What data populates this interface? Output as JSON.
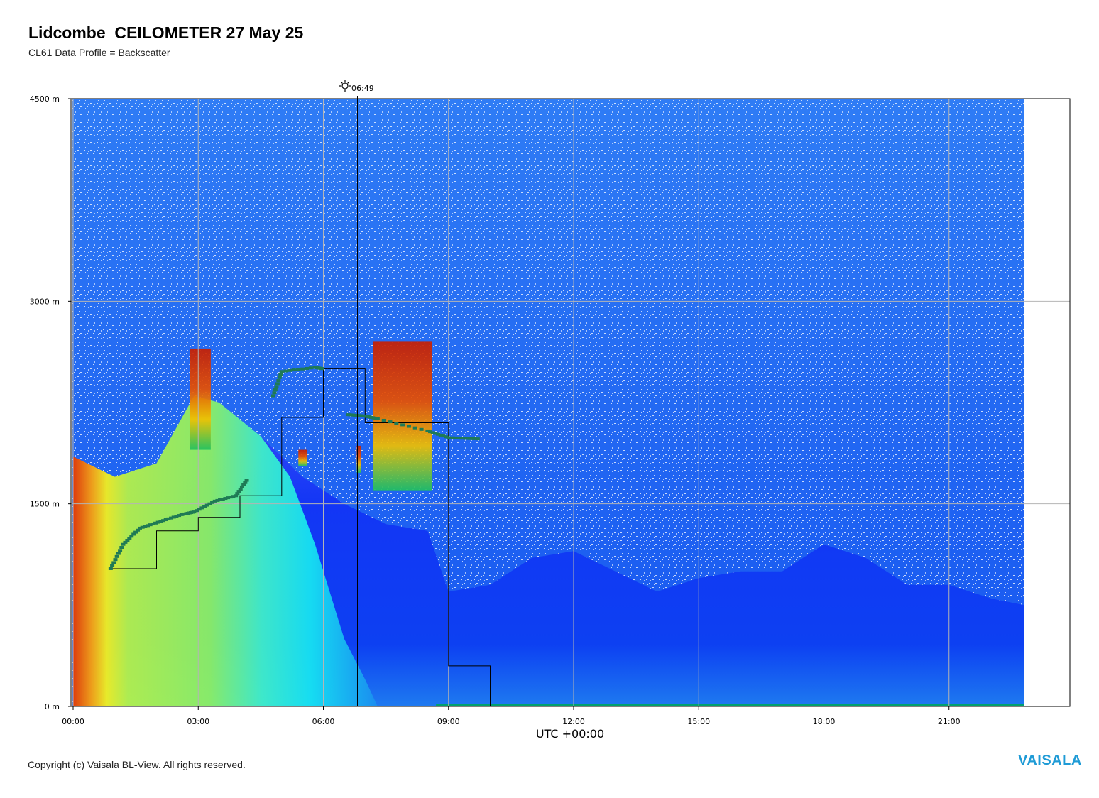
{
  "header": {
    "title": "Lidcombe_CEILOMETER 27 May 25",
    "subtitle": "CL61 Data Profile = Backscatter"
  },
  "footer": {
    "copyright": "Copyright (c) Vaisala BL-View. All rights reserved.",
    "brand": "VAISALA"
  },
  "chart_data": {
    "type": "heatmap",
    "title": "Lidcombe_CEILOMETER 27 May 25",
    "subtitle": "CL61 Data Profile = Backscatter",
    "xlabel": "UTC +00:00",
    "ylabel": "",
    "x_unit": "hours UTC",
    "y_unit": "m",
    "xlim": [
      0,
      24
    ],
    "ylim": [
      0,
      4500
    ],
    "x_ticks": [
      "00:00",
      "03:00",
      "06:00",
      "09:00",
      "12:00",
      "15:00",
      "18:00",
      "21:00"
    ],
    "x_tick_values": [
      0,
      3,
      6,
      9,
      12,
      15,
      18,
      21
    ],
    "y_ticks": [
      "0 m",
      "1500 m",
      "3000 m",
      "4500 m"
    ],
    "y_tick_values": [
      0,
      1500,
      3000,
      4500
    ],
    "data_end_hour": 22.8,
    "grid": true,
    "sunrise": {
      "label": "06:49",
      "hour": 6.817,
      "icon": "sun-icon"
    },
    "colors": {
      "noise": "#0a5cf0",
      "boundary_layer": "#1a3cf8",
      "high_backscatter": "#c81e00",
      "aerosol_green": "#7cf06a",
      "aerosol_cyan": "#1ae6f0",
      "layer_marker": "#1f7a55",
      "surface": "#00a070"
    },
    "boundary_layer_top_m": [
      [
        0,
        1850
      ],
      [
        1,
        1700
      ],
      [
        2,
        1800
      ],
      [
        2.9,
        2300
      ],
      [
        3.5,
        2250
      ],
      [
        4.5,
        2000
      ],
      [
        5.5,
        1700
      ],
      [
        6.5,
        1500
      ],
      [
        7.5,
        1350
      ],
      [
        8.5,
        1300
      ],
      [
        9,
        850
      ],
      [
        10,
        900
      ],
      [
        11,
        1100
      ],
      [
        12,
        1150
      ],
      [
        13,
        1000
      ],
      [
        14,
        850
      ],
      [
        15,
        950
      ],
      [
        16,
        1000
      ],
      [
        17,
        1000
      ],
      [
        18,
        1200
      ],
      [
        19,
        1100
      ],
      [
        20,
        900
      ],
      [
        21,
        900
      ],
      [
        22,
        800
      ],
      [
        22.8,
        750
      ]
    ],
    "cloud_layers": [
      {
        "x0": 2.8,
        "x1": 3.3,
        "y0": 1900,
        "y1": 2650
      },
      {
        "x0": 5.4,
        "x1": 5.6,
        "y0": 1780,
        "y1": 1900
      },
      {
        "x0": 6.8,
        "x1": 6.9,
        "y0": 1730,
        "y1": 1930
      },
      {
        "x0": 7.2,
        "x1": 8.6,
        "y0": 1600,
        "y1": 2700
      }
    ],
    "layer_height_trace_m": [
      [
        0.9,
        1020
      ],
      [
        1.2,
        1200
      ],
      [
        1.6,
        1320
      ],
      [
        2.1,
        1370
      ],
      [
        2.6,
        1420
      ],
      [
        2.9,
        1440
      ],
      [
        3.4,
        1520
      ],
      [
        3.9,
        1560
      ],
      [
        4.2,
        1690
      ],
      [
        4.3,
        1990
      ],
      [
        4.8,
        2300
      ],
      [
        5.0,
        2480
      ],
      [
        5.8,
        2510
      ],
      [
        6.0,
        2500
      ],
      [
        6.6,
        2160
      ],
      [
        7.0,
        2150
      ],
      [
        7.3,
        2130
      ],
      [
        8.5,
        2040
      ],
      [
        9.0,
        1990
      ],
      [
        9.8,
        1980
      ]
    ],
    "mixing_height_steps_m": [
      [
        0.9,
        1020
      ],
      [
        2.0,
        1020
      ],
      [
        2.0,
        1300
      ],
      [
        3.0,
        1300
      ],
      [
        3.0,
        1400
      ],
      [
        4.0,
        1400
      ],
      [
        4.0,
        1560
      ],
      [
        5.0,
        1560
      ],
      [
        5.0,
        2140
      ],
      [
        6.0,
        2140
      ],
      [
        6.0,
        2500
      ],
      [
        7.0,
        2500
      ],
      [
        7.0,
        2100
      ],
      [
        9.0,
        2100
      ],
      [
        9.0,
        300
      ],
      [
        10.0,
        300
      ],
      [
        10.0,
        0
      ]
    ]
  }
}
